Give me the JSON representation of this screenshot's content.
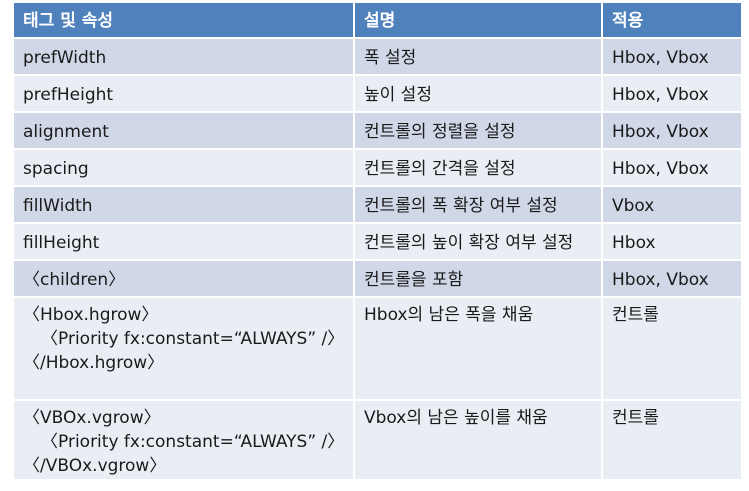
{
  "table": {
    "headers": [
      "태그 및 속성",
      "설명",
      "적용"
    ],
    "rows": [
      {
        "tag": [
          "prefWidth"
        ],
        "desc": "폭 설정",
        "apply": "Hbox, Vbox"
      },
      {
        "tag": [
          "prefHeight"
        ],
        "desc": "높이 설정",
        "apply": "Hbox, Vbox"
      },
      {
        "tag": [
          "alignment"
        ],
        "desc": "컨트롤의 정렬을 설정",
        "apply": "Hbox, Vbox"
      },
      {
        "tag": [
          "spacing"
        ],
        "desc": "컨트롤의 간격을 설정",
        "apply": "Hbox, Vbox"
      },
      {
        "tag": [
          "fillWidth"
        ],
        "desc": "컨트롤의 폭 확장 여부 설정",
        "apply": "Vbox"
      },
      {
        "tag": [
          "fillHeight"
        ],
        "desc": "컨트롤의 높이 확장 여부 설정",
        "apply": "Hbox"
      },
      {
        "tag": [
          "〈children〉"
        ],
        "desc": "컨트롤을 포함",
        "apply": "Hbox, Vbox"
      },
      {
        "tag": [
          "〈Hbox.hgrow〉",
          "〈Priority fx:constant=“ALWAYS” /〉",
          "〈/Hbox.hgrow〉"
        ],
        "desc": "Hbox의 남은 폭을 채움",
        "apply": "컨트롤"
      },
      {
        "tag": [
          "〈VBOx.vgrow〉",
          "〈Priority fx:constant=“ALWAYS” /〉",
          "〈/VBOx.vgrow〉"
        ],
        "desc": "Vbox의 남은 높이를 채움",
        "apply": "컨트롤"
      }
    ]
  }
}
